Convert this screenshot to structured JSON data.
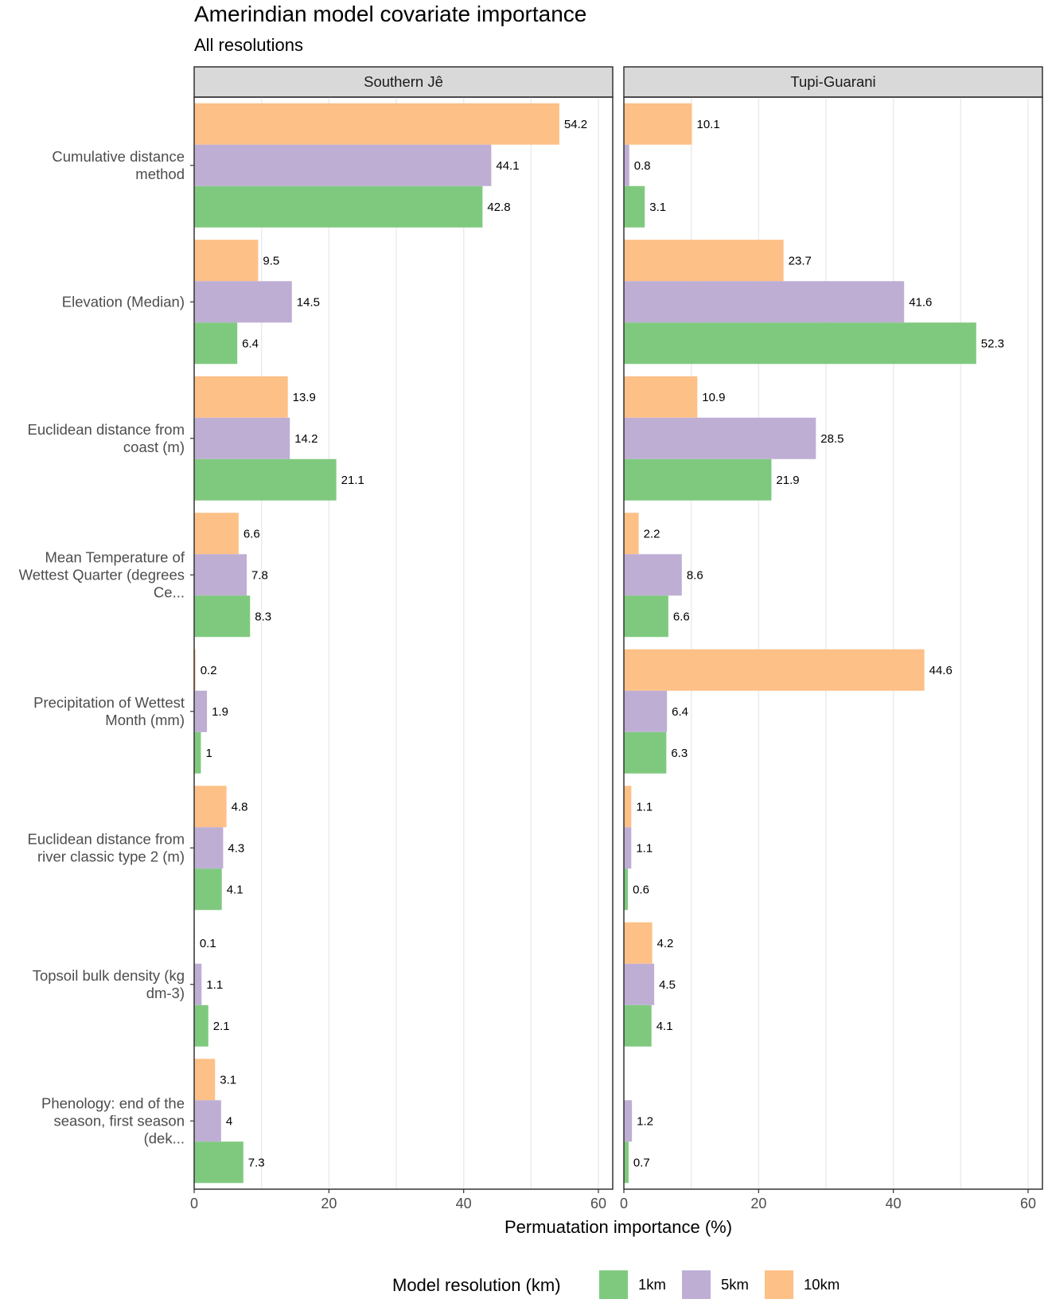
{
  "chart_data": {
    "type": "bar",
    "orientation": "horizontal",
    "title": "Amerindian model covariate importance",
    "subtitle": "All resolutions",
    "xlabel": "Permuatation importance (%)",
    "xlim": [
      0,
      62
    ],
    "xticks": [
      0,
      20,
      40,
      60
    ],
    "grid": true,
    "legend": {
      "title": "Model resolution (km)",
      "placement": "bottom"
    },
    "categories": [
      [
        "Cumulative distance",
        "method"
      ],
      [
        "Elevation (Median)"
      ],
      [
        "Euclidean distance from",
        "coast (m)"
      ],
      [
        "Mean Temperature of",
        "Wettest Quarter (degrees",
        "Ce..."
      ],
      [
        "Precipitation of Wettest",
        "Month (mm)"
      ],
      [
        "Euclidean distance from",
        "river classic type 2 (m)"
      ],
      [
        "Topsoil bulk density (kg",
        "dm-3)"
      ],
      [
        "Phenology: end of the",
        "season, first season",
        "(dek..."
      ]
    ],
    "series": [
      {
        "name": "10km",
        "color": "#fdc086"
      },
      {
        "name": "5km",
        "color": "#beaed4"
      },
      {
        "name": "1km",
        "color": "#7fc97f"
      }
    ],
    "legend_order": [
      "1km",
      "5km",
      "10km"
    ],
    "panels": [
      {
        "name": "Southern Jê",
        "values": {
          "10km": [
            54.2,
            9.5,
            13.9,
            6.6,
            0.2,
            4.8,
            0.1,
            3.1
          ],
          "5km": [
            44.1,
            14.5,
            14.2,
            7.8,
            1.9,
            4.3,
            1.1,
            4
          ],
          "1km": [
            42.8,
            6.4,
            21.1,
            8.3,
            1,
            4.1,
            2.1,
            7.3
          ]
        }
      },
      {
        "name": "Tupi-Guarani",
        "values": {
          "10km": [
            10.1,
            23.7,
            10.9,
            2.2,
            44.6,
            1.1,
            4.2,
            null
          ],
          "5km": [
            0.8,
            41.6,
            28.5,
            8.6,
            6.4,
            1.1,
            4.5,
            1.2
          ],
          "1km": [
            3.1,
            52.3,
            21.9,
            6.6,
            6.3,
            0.6,
            4.1,
            0.7
          ]
        }
      }
    ]
  }
}
